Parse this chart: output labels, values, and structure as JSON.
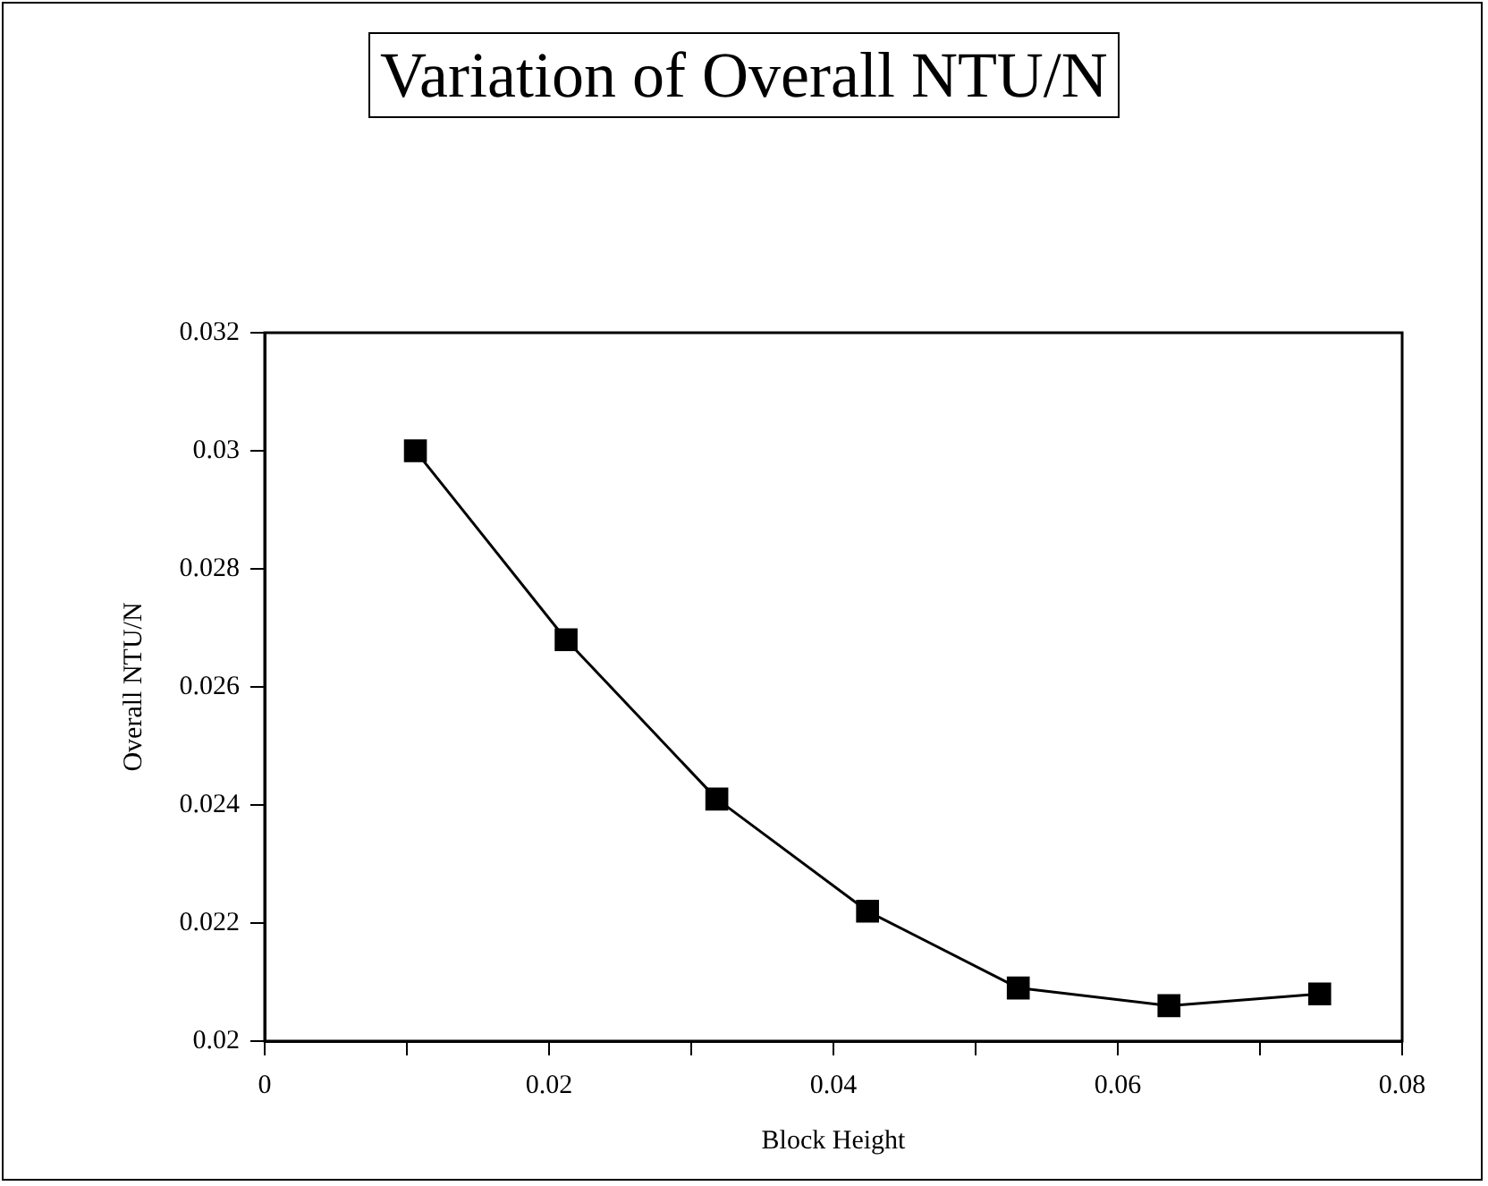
{
  "chart_data": {
    "type": "line",
    "title": "Variation of Overall NTU/N",
    "xlabel": "Block Height",
    "ylabel": "Overall NTU/N",
    "x": [
      0.0106,
      0.0212,
      0.0318,
      0.0424,
      0.053,
      0.0636,
      0.0742
    ],
    "series": [
      {
        "color": "#000000",
        "values": [
          0.03,
          0.0268,
          0.0241,
          0.0222,
          0.0209,
          0.0206,
          0.0208
        ]
      }
    ],
    "xlim": [
      0,
      0.08
    ],
    "xticks": [
      0,
      {
        "value": 0.01,
        "label": null
      },
      0.02,
      {
        "value": 0.03,
        "label": null
      },
      0.04,
      {
        "value": 0.05,
        "label": null
      },
      0.06,
      {
        "value": 0.07,
        "label": null
      },
      0.08
    ],
    "ylim": [
      0.02,
      0.032
    ],
    "yticks": [
      0.02,
      0.022,
      0.024,
      0.026,
      0.028,
      0.03,
      0.032
    ],
    "grid": false,
    "legend": false,
    "marker": "square",
    "line_style": "solid"
  }
}
